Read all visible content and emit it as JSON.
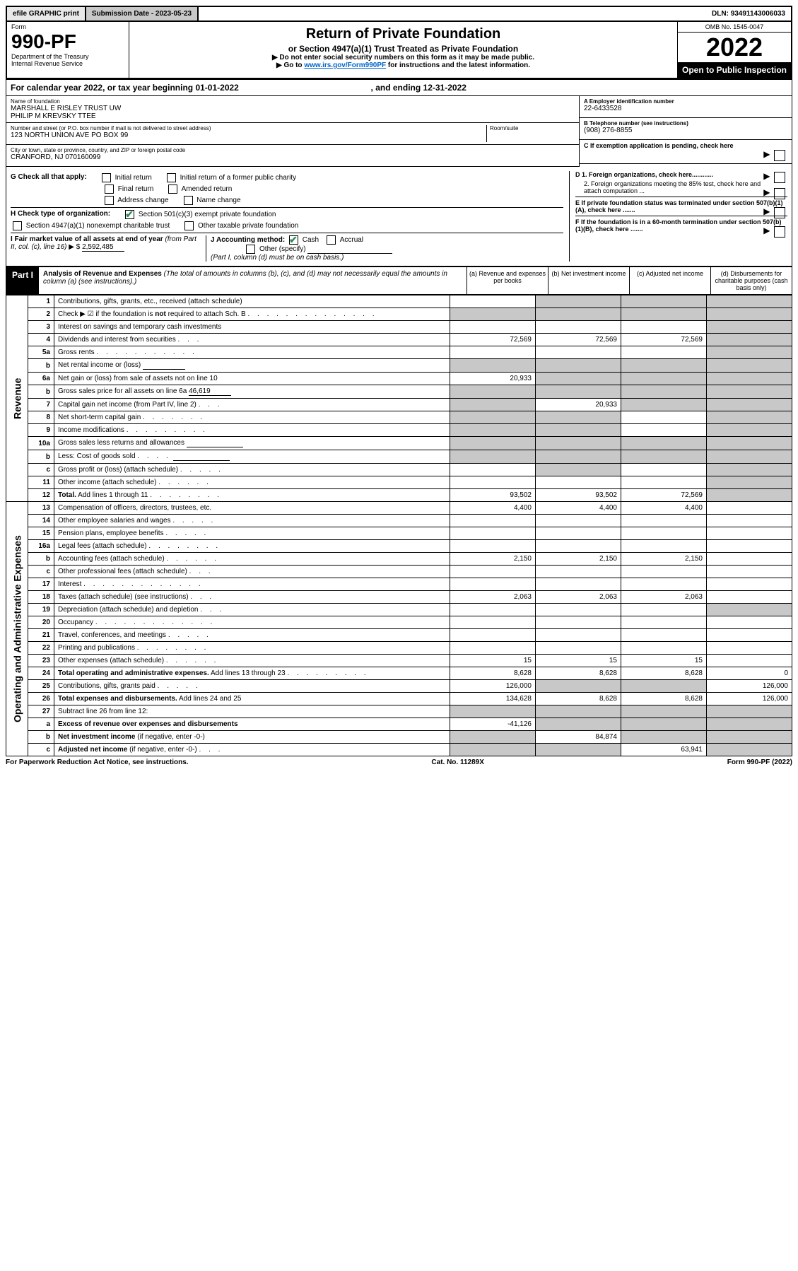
{
  "topbar": {
    "efile": "efile GRAPHIC print",
    "subdate_label": "Submission Date - ",
    "subdate": "2023-05-23",
    "dln_label": "DLN: ",
    "dln": "93491143006033"
  },
  "header": {
    "form_word": "Form",
    "form_no": "990-PF",
    "dept1": "Department of the Treasury",
    "dept2": "Internal Revenue Service",
    "title": "Return of Private Foundation",
    "subtitle": "or Section 4947(a)(1) Trust Treated as Private Foundation",
    "note1": "▶ Do not enter social security numbers on this form as it may be made public.",
    "note2_a": "▶ Go to ",
    "note2_link": "www.irs.gov/Form990PF",
    "note2_b": " for instructions and the latest information.",
    "omb": "OMB No. 1545-0047",
    "year": "2022",
    "open": "Open to Public Inspection"
  },
  "calendar": {
    "text_a": "For calendar year 2022, or tax year beginning ",
    "begin": "01-01-2022",
    "text_b": " , and ending ",
    "end": "12-31-2022"
  },
  "foundation": {
    "name_label": "Name of foundation",
    "name1": "MARSHALL E RISLEY TRUST UW",
    "name2": "PHILIP M KREVSKY TTEE",
    "addr_label": "Number and street (or P.O. box number if mail is not delivered to street address)",
    "addr": "123 NORTH UNION AVE PO BOX 99",
    "room_label": "Room/suite",
    "city_label": "City or town, state or province, country, and ZIP or foreign postal code",
    "city": "CRANFORD, NJ  070160099",
    "ein_label": "A Employer identification number",
    "ein": "22-6433528",
    "phone_label": "B Telephone number (see instructions)",
    "phone": "(908) 276-8855",
    "c_label": "C If exemption application is pending, check here"
  },
  "checks": {
    "g_label": "G Check all that apply:",
    "g_opts": [
      "Initial return",
      "Initial return of a former public charity",
      "Final return",
      "Amended return",
      "Address change",
      "Name change"
    ],
    "h_label": "H Check type of organization:",
    "h_opts": [
      "Section 501(c)(3) exempt private foundation",
      "Section 4947(a)(1) nonexempt charitable trust",
      "Other taxable private foundation"
    ],
    "i_label_a": "I Fair market value of all assets at end of year ",
    "i_label_b": "(from Part II, col. (c), line 16)",
    "i_arrow": "▶ $",
    "i_value": "2,592,485",
    "j_label": "J Accounting method:",
    "j_opts": [
      "Cash",
      "Accrual",
      "Other (specify)"
    ],
    "j_note": "(Part I, column (d) must be on cash basis.)",
    "d1": "D 1. Foreign organizations, check here............",
    "d2": "2. Foreign organizations meeting the 85% test, check here and attach computation ...",
    "e": "E  If private foundation status was terminated under section 507(b)(1)(A), check here .......",
    "f": "F  If the foundation is in a 60-month termination under section 507(b)(1)(B), check here .......",
    "arrow": "▶"
  },
  "part1": {
    "label": "Part I",
    "title": "Analysis of Revenue and Expenses",
    "title_note": " (The total of amounts in columns (b), (c), and (d) may not necessarily equal the amounts in column (a) (see instructions).)",
    "cols": [
      "(a)  Revenue and expenses per books",
      "(b)  Net investment income",
      "(c)  Adjusted net income",
      "(d)  Disbursements for charitable purposes (cash basis only)"
    ]
  },
  "sides": {
    "rev": "Revenue",
    "exp": "Operating and Administrative Expenses"
  },
  "rows": [
    {
      "ln": "1",
      "desc": "Contributions, gifts, grants, etc., received (attach schedule)",
      "a": "",
      "b": "S",
      "c": "S",
      "d": "S"
    },
    {
      "ln": "2",
      "desc": "Check ▶ ☑ if the foundation is <b>not</b> required to attach Sch. B <span class='dots'>. . . . . . . . . . . . . .</span>",
      "a": "S",
      "b": "S",
      "c": "S",
      "d": "S",
      "html": true
    },
    {
      "ln": "3",
      "desc": "Interest on savings and temporary cash investments",
      "a": "",
      "b": "",
      "c": "",
      "d": "S"
    },
    {
      "ln": "4",
      "desc": "Dividends and interest from securities <span class='dots'>. . .</span>",
      "a": "72,569",
      "b": "72,569",
      "c": "72,569",
      "d": "S",
      "html": true
    },
    {
      "ln": "5a",
      "desc": "Gross rents <span class='dots'>. . . . . . . . . . .</span>",
      "a": "",
      "b": "",
      "c": "",
      "d": "S",
      "html": true
    },
    {
      "ln": "b",
      "desc": "Net rental income or (loss)  <span class='line-und'>&nbsp;</span>",
      "a": "S",
      "b": "S",
      "c": "S",
      "d": "S",
      "html": true
    },
    {
      "ln": "6a",
      "desc": "Net gain or (loss) from sale of assets not on line 10",
      "a": "20,933",
      "b": "S",
      "c": "S",
      "d": "S"
    },
    {
      "ln": "b",
      "desc": "Gross sales price for all assets on line 6a <span class='line-und'>46,619</span>",
      "a": "S",
      "b": "S",
      "c": "S",
      "d": "S",
      "html": true
    },
    {
      "ln": "7",
      "desc": "Capital gain net income (from Part IV, line 2) <span class='dots'>. . .</span>",
      "a": "S",
      "b": "20,933",
      "c": "S",
      "d": "S",
      "html": true
    },
    {
      "ln": "8",
      "desc": "Net short-term capital gain <span class='dots'>. . . . . . .</span>",
      "a": "S",
      "b": "S",
      "c": "",
      "d": "S",
      "html": true
    },
    {
      "ln": "9",
      "desc": "Income modifications <span class='dots'>. . . . . . . . .</span>",
      "a": "S",
      "b": "S",
      "c": "",
      "d": "S",
      "html": true
    },
    {
      "ln": "10a",
      "desc": "Gross sales less returns and allowances <span class='line-und' style='min-width:80px'>&nbsp;</span>",
      "a": "S",
      "b": "S",
      "c": "S",
      "d": "S",
      "html": true
    },
    {
      "ln": "b",
      "desc": "Less: Cost of goods sold <span class='dots'>. . . .</span> <span class='line-und' style='min-width:80px'>&nbsp;</span>",
      "a": "S",
      "b": "S",
      "c": "S",
      "d": "S",
      "html": true
    },
    {
      "ln": "c",
      "desc": "Gross profit or (loss) (attach schedule) <span class='dots'>. . . . .</span>",
      "a": "",
      "b": "S",
      "c": "",
      "d": "S",
      "html": true
    },
    {
      "ln": "11",
      "desc": "Other income (attach schedule) <span class='dots'>. . . . . .</span>",
      "a": "",
      "b": "",
      "c": "",
      "d": "S",
      "html": true
    },
    {
      "ln": "12",
      "desc": "<b>Total.</b> Add lines 1 through 11 <span class='dots'>. . . . . . . .</span>",
      "a": "93,502",
      "b": "93,502",
      "c": "72,569",
      "d": "S",
      "html": true
    },
    {
      "ln": "13",
      "desc": "Compensation of officers, directors, trustees, etc.",
      "a": "4,400",
      "b": "4,400",
      "c": "4,400",
      "d": ""
    },
    {
      "ln": "14",
      "desc": "Other employee salaries and wages <span class='dots'>. . . . .</span>",
      "a": "",
      "b": "",
      "c": "",
      "d": "",
      "html": true
    },
    {
      "ln": "15",
      "desc": "Pension plans, employee benefits <span class='dots'>. . . . .</span>",
      "a": "",
      "b": "",
      "c": "",
      "d": "",
      "html": true
    },
    {
      "ln": "16a",
      "desc": "Legal fees (attach schedule) <span class='dots'>. . . . . . . .</span>",
      "a": "",
      "b": "",
      "c": "",
      "d": "",
      "html": true
    },
    {
      "ln": "b",
      "desc": "Accounting fees (attach schedule) <span class='dots'>. . . . . .</span>",
      "a": "2,150",
      "b": "2,150",
      "c": "2,150",
      "d": "",
      "html": true
    },
    {
      "ln": "c",
      "desc": "Other professional fees (attach schedule) <span class='dots'>. . .</span>",
      "a": "",
      "b": "",
      "c": "",
      "d": "",
      "html": true
    },
    {
      "ln": "17",
      "desc": "Interest <span class='dots'>. . . . . . . . . . . . .</span>",
      "a": "",
      "b": "",
      "c": "",
      "d": "",
      "html": true
    },
    {
      "ln": "18",
      "desc": "Taxes (attach schedule) (see instructions) <span class='dots'>. . .</span>",
      "a": "2,063",
      "b": "2,063",
      "c": "2,063",
      "d": "",
      "html": true
    },
    {
      "ln": "19",
      "desc": "Depreciation (attach schedule) and depletion <span class='dots'>. . .</span>",
      "a": "",
      "b": "",
      "c": "",
      "d": "S",
      "html": true
    },
    {
      "ln": "20",
      "desc": "Occupancy <span class='dots'>. . . . . . . . . . . . .</span>",
      "a": "",
      "b": "",
      "c": "",
      "d": "",
      "html": true
    },
    {
      "ln": "21",
      "desc": "Travel, conferences, and meetings <span class='dots'>. . . . .</span>",
      "a": "",
      "b": "",
      "c": "",
      "d": "",
      "html": true
    },
    {
      "ln": "22",
      "desc": "Printing and publications <span class='dots'>. . . . . . . .</span>",
      "a": "",
      "b": "",
      "c": "",
      "d": "",
      "html": true
    },
    {
      "ln": "23",
      "desc": "Other expenses (attach schedule) <span class='dots'>. . . . . .</span>",
      "a": "15",
      "b": "15",
      "c": "15",
      "d": "",
      "html": true
    },
    {
      "ln": "24",
      "desc": "<b>Total operating and administrative expenses.</b> Add lines 13 through 23 <span class='dots'>. . . . . . . . .</span>",
      "a": "8,628",
      "b": "8,628",
      "c": "8,628",
      "d": "0",
      "html": true
    },
    {
      "ln": "25",
      "desc": "Contributions, gifts, grants paid <span class='dots'>. . . . .</span>",
      "a": "126,000",
      "b": "S",
      "c": "S",
      "d": "126,000",
      "html": true
    },
    {
      "ln": "26",
      "desc": "<b>Total expenses and disbursements.</b> Add lines 24 and 25",
      "a": "134,628",
      "b": "8,628",
      "c": "8,628",
      "d": "126,000",
      "html": true
    },
    {
      "ln": "27",
      "desc": "Subtract line 26 from line 12:",
      "a": "S",
      "b": "S",
      "c": "S",
      "d": "S"
    },
    {
      "ln": "a",
      "desc": "<b>Excess of revenue over expenses and disbursements</b>",
      "a": "-41,126",
      "b": "S",
      "c": "S",
      "d": "S",
      "html": true
    },
    {
      "ln": "b",
      "desc": "<b>Net investment income</b> (if negative, enter -0-)",
      "a": "S",
      "b": "84,874",
      "c": "S",
      "d": "S",
      "html": true
    },
    {
      "ln": "c",
      "desc": "<b>Adjusted net income</b> (if negative, enter -0-) <span class='dots'>. . .</span>",
      "a": "S",
      "b": "S",
      "c": "63,941",
      "d": "S",
      "html": true
    }
  ],
  "footer": {
    "left": "For Paperwork Reduction Act Notice, see instructions.",
    "mid": "Cat. No. 11289X",
    "right": "Form 990-PF (2022)"
  }
}
